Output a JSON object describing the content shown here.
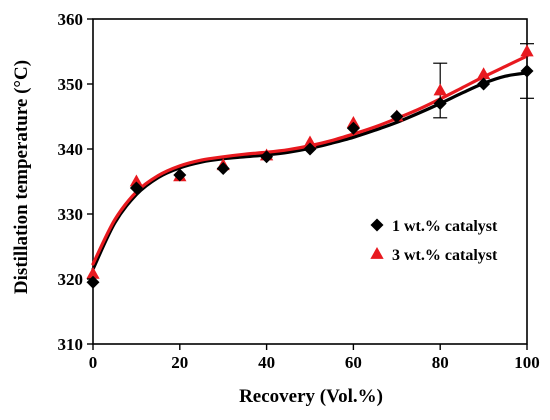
{
  "chart_data": {
    "type": "scatter",
    "xlabel": "Recovery (Vol.%)",
    "ylabel": "Distillation temperature (°C)",
    "xlim": [
      0,
      100
    ],
    "ylim": [
      310,
      360
    ],
    "xticks": [
      0,
      20,
      40,
      60,
      80,
      100
    ],
    "yticks": [
      310,
      320,
      330,
      340,
      350,
      360
    ],
    "grid": false,
    "legend_position": "center-right",
    "series": [
      {
        "name": "1 wt.% catalyst",
        "marker": "diamond",
        "color": "#000000",
        "x": [
          0,
          10,
          20,
          30,
          40,
          50,
          60,
          70,
          80,
          90,
          100
        ],
        "y": [
          319.5,
          334,
          336,
          337,
          338.8,
          340,
          343.2,
          345,
          347,
          350,
          352
        ],
        "error_bars": [
          {
            "x": 80,
            "low": 344.8,
            "high": 353.2
          },
          {
            "x": 100,
            "low": 347.8,
            "high": 356.2
          }
        ],
        "fit_curve": {
          "x": [
            0,
            5,
            10,
            15,
            20,
            25,
            30,
            35,
            40,
            45,
            50,
            55,
            60,
            65,
            70,
            75,
            80,
            85,
            90,
            95,
            100
          ],
          "y": [
            321.5,
            328.6,
            333.0,
            335.6,
            337.1,
            338.0,
            338.5,
            338.8,
            339.1,
            339.5,
            340.1,
            340.9,
            341.8,
            342.9,
            344.1,
            345.5,
            347.0,
            348.6,
            350.1,
            351.2,
            351.7
          ]
        }
      },
      {
        "name": "3 wt.% catalyst",
        "marker": "triangle",
        "color": "#e8191f",
        "x": [
          0,
          10,
          20,
          30,
          40,
          50,
          60,
          70,
          80,
          90,
          100
        ],
        "y": [
          320.8,
          335,
          335.8,
          337.5,
          339,
          341,
          344,
          345,
          349,
          351.5,
          355
        ],
        "fit_curve": {
          "x": [
            0,
            5,
            10,
            15,
            20,
            25,
            30,
            35,
            40,
            45,
            50,
            55,
            60,
            65,
            70,
            75,
            80,
            85,
            90,
            95,
            100
          ],
          "y": [
            322.3,
            329.1,
            333.4,
            335.9,
            337.4,
            338.3,
            338.8,
            339.2,
            339.5,
            339.9,
            340.5,
            341.3,
            342.3,
            343.4,
            344.7,
            346.1,
            347.7,
            349.4,
            351.1,
            352.7,
            354.3
          ]
        }
      }
    ]
  }
}
